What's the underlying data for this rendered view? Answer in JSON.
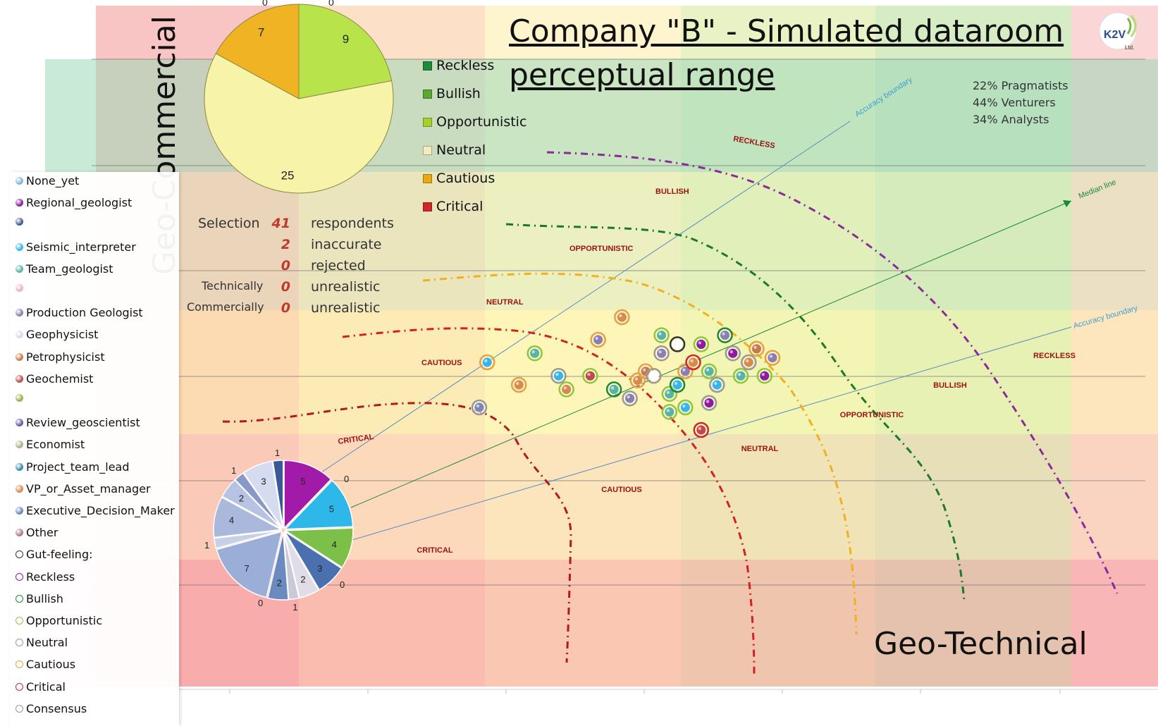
{
  "title_line1": "Company \"B\" - Simulated dataroom",
  "title_line2": "perceptual range",
  "y_axis_label": "Geo-Commercial",
  "x_axis_label": "Geo-Technical",
  "logo_text": "K2V",
  "logo_sub": "Ltd.",
  "stats": [
    "22%  Pragmatists",
    "44%  Venturers",
    "34%  Analysts"
  ],
  "selection": {
    "rows": [
      {
        "label": "Selection",
        "value": "41",
        "text": "respondents"
      },
      {
        "label": "",
        "value": "2",
        "text": "inaccurate"
      },
      {
        "label": "",
        "value": "0",
        "text": "rejected"
      },
      {
        "label": "Technically",
        "value": "0",
        "text": "unrealistic"
      },
      {
        "label": "Commercially",
        "value": "0",
        "text": "unrealistic"
      }
    ]
  },
  "pie_legend": [
    {
      "label": "Reckless",
      "color": "#1f8a3a"
    },
    {
      "label": "Bullish",
      "color": "#5aa832"
    },
    {
      "label": "Opportunistic",
      "color": "#a6d12c"
    },
    {
      "label": "Neutral",
      "color": "#f2ecc0"
    },
    {
      "label": "Cautious",
      "color": "#e8a917"
    },
    {
      "label": "Critical",
      "color": "#d32626"
    }
  ],
  "legend": [
    {
      "label": "None_yet",
      "color": "#7fb7d8",
      "hollow": false
    },
    {
      "label": "Regional_geologist",
      "color": "#8e1d9e",
      "hollow": false
    },
    {
      "label": "",
      "color": "#3b5998",
      "hollow": false
    },
    {
      "label": "Seismic_interpreter",
      "color": "#39b4e6",
      "hollow": false
    },
    {
      "label": "Team_geologist",
      "color": "#58b3a0",
      "hollow": false
    },
    {
      "label": "",
      "color": "#e8b4c0",
      "hollow": false
    },
    {
      "label": "Production Geologist",
      "color": "#8c7fb0",
      "hollow": false
    },
    {
      "label": "Geophysicist",
      "color": "#d9d9ee",
      "hollow": false
    },
    {
      "label": "Petrophysicist",
      "color": "#c97a4a",
      "hollow": false
    },
    {
      "label": "Geochemist",
      "color": "#c04a4a",
      "hollow": false
    },
    {
      "label": "",
      "color": "#9ab04a",
      "hollow": false
    },
    {
      "label": "Review_geoscientist",
      "color": "#6a5a9a",
      "hollow": false
    },
    {
      "label": "Economist",
      "color": "#b0b08a",
      "hollow": false
    },
    {
      "label": "Project_team_lead",
      "color": "#3a8ab0",
      "hollow": false
    },
    {
      "label": "VP_or_Asset_manager",
      "color": "#d88a4a",
      "hollow": false
    },
    {
      "label": "Executive_Decision_Maker",
      "color": "#6a8ab8",
      "hollow": false
    },
    {
      "label": "Other",
      "color": "#b07a8a",
      "hollow": false
    },
    {
      "label": "Gut-feeling:",
      "color": "#333333",
      "hollow": true
    },
    {
      "label": "Reckless",
      "color": "#8e1d9e",
      "hollow": true
    },
    {
      "label": "Bullish",
      "color": "#1a8a3a",
      "hollow": true
    },
    {
      "label": "Opportunistic",
      "color": "#8ec63f",
      "hollow": true
    },
    {
      "label": "Neutral",
      "color": "#999999",
      "hollow": true
    },
    {
      "label": "Cautious",
      "color": "#e8a040",
      "hollow": true
    },
    {
      "label": "Critical",
      "color": "#d32626",
      "hollow": true
    },
    {
      "label": "Consensus",
      "color": "#999999",
      "hollow": true
    }
  ],
  "zone_labels": {
    "upper": [
      "RECKLESS",
      "BULLISH",
      "OPPORTUNISTIC",
      "NEUTRAL",
      "CAUTIOUS",
      "CRITICAL"
    ],
    "lower": [
      "RECKLESS",
      "BULLISH",
      "OPPORTUNISTIC",
      "NEUTRAL",
      "CAUTIOUS",
      "CRITICAL"
    ]
  },
  "line_labels": {
    "accuracy_upper": "Accuracy boundary",
    "median": "Median line",
    "accuracy_lower": "Accuracy boundary"
  },
  "chart_data": [
    {
      "type": "pie",
      "name": "gut-feeling distribution",
      "labels": [
        "Reckless",
        "Bullish",
        "Opportunistic",
        "Neutral",
        "Cautious",
        "Critical"
      ],
      "values": [
        0,
        0,
        9,
        25,
        7,
        0
      ],
      "colors": [
        "#1f8a3a",
        "#5aa832",
        "#b9e34a",
        "#f7f3a8",
        "#f0b323",
        "#d32626"
      ]
    },
    {
      "type": "pie",
      "name": "respondent roles",
      "labels": [
        "Regional_geologist",
        "Seismic_interpreter",
        "Team_geologist",
        "Production Geologist",
        "Geophysicist",
        "Petrophysicist",
        "Geochemist",
        "Review_geoscientist",
        "Economist",
        "Project_team_lead",
        "VP_or_Asset_manager",
        "Executive_Decision_Maker",
        "Other",
        "None_yet"
      ],
      "values": [
        5,
        5,
        4,
        3,
        2,
        1,
        2,
        7,
        1,
        4,
        2,
        1,
        3,
        1
      ],
      "extra_zero_labels": [
        "0",
        "0",
        "0",
        "0"
      ],
      "colors": [
        "#a21aa8",
        "#2eb8ea",
        "#7cc04a",
        "#4a70b0",
        "#e0dce8",
        "#c9c9d8",
        "#6a8ac0",
        "#9aaed8",
        "#c8d0e8",
        "#aab8dc",
        "#b8c2e2",
        "#8899c8",
        "#d6dcef",
        "#3b5998"
      ]
    },
    {
      "type": "scatter",
      "name": "respondents",
      "xlim": [
        0,
        100
      ],
      "ylim": [
        0,
        100
      ],
      "points": [
        {
          "x": 30,
          "y": 45,
          "c": "#7a86b8",
          "ring": "#999999"
        },
        {
          "x": 31,
          "y": 55,
          "c": "#39b4e6",
          "ring": "#e8a040"
        },
        {
          "x": 35,
          "y": 50,
          "c": "#d88a4a",
          "ring": "#e8a040"
        },
        {
          "x": 37,
          "y": 57,
          "c": "#58b3a0",
          "ring": "#8ec63f"
        },
        {
          "x": 40,
          "y": 52,
          "c": "#39b4e6",
          "ring": "#999999"
        },
        {
          "x": 41,
          "y": 49,
          "c": "#d88a4a",
          "ring": "#8ec63f"
        },
        {
          "x": 44,
          "y": 52,
          "c": "#c04a4a",
          "ring": "#8ec63f"
        },
        {
          "x": 45,
          "y": 60,
          "c": "#8c7fb0",
          "ring": "#e8a040"
        },
        {
          "x": 47,
          "y": 49,
          "c": "#58b3a0",
          "ring": "#1a8a3a"
        },
        {
          "x": 48,
          "y": 65,
          "c": "#d88a4a",
          "ring": "#e8a040"
        },
        {
          "x": 49,
          "y": 47,
          "c": "#8c7fb0",
          "ring": "#999999"
        },
        {
          "x": 50,
          "y": 51,
          "c": "#d88a4a",
          "ring": "#e8a040"
        },
        {
          "x": 51,
          "y": 53,
          "c": "#c97a4a",
          "ring": "#e8a040"
        },
        {
          "x": 52,
          "y": 52,
          "c": "#ffffff",
          "ring": "#999999"
        },
        {
          "x": 53,
          "y": 57,
          "c": "#8c7fb0",
          "ring": "#999999"
        },
        {
          "x": 53,
          "y": 61,
          "c": "#58b3a0",
          "ring": "#8ec63f"
        },
        {
          "x": 54,
          "y": 48,
          "c": "#58b3a0",
          "ring": "#8ec63f"
        },
        {
          "x": 55,
          "y": 50,
          "c": "#39b4e6",
          "ring": "#1a8a3a"
        },
        {
          "x": 55,
          "y": 59,
          "c": "#ffffff",
          "ring": "#333333"
        },
        {
          "x": 56,
          "y": 53,
          "c": "#8c7fb0",
          "ring": "#e8a040"
        },
        {
          "x": 57,
          "y": 55,
          "c": "#d88a4a",
          "ring": "#d32626"
        },
        {
          "x": 58,
          "y": 59,
          "c": "#8e1d9e",
          "ring": "#8ec63f"
        },
        {
          "x": 59,
          "y": 53,
          "c": "#58b3a0",
          "ring": "#8ec63f"
        },
        {
          "x": 60,
          "y": 50,
          "c": "#39b4e6",
          "ring": "#999999"
        },
        {
          "x": 61,
          "y": 61,
          "c": "#8c7fb0",
          "ring": "#1a8a3a"
        },
        {
          "x": 62,
          "y": 57,
          "c": "#8e1d9e",
          "ring": "#999999"
        },
        {
          "x": 63,
          "y": 52,
          "c": "#58b3a0",
          "ring": "#8ec63f"
        },
        {
          "x": 64,
          "y": 55,
          "c": "#d88a4a",
          "ring": "#999999"
        },
        {
          "x": 65,
          "y": 58,
          "c": "#c97a4a",
          "ring": "#e8a040"
        },
        {
          "x": 66,
          "y": 52,
          "c": "#8e1d9e",
          "ring": "#8ec63f"
        },
        {
          "x": 67,
          "y": 56,
          "c": "#8c7fb0",
          "ring": "#e8a040"
        },
        {
          "x": 58,
          "y": 40,
          "c": "#c04a4a",
          "ring": "#d32626"
        },
        {
          "x": 56,
          "y": 45,
          "c": "#39b4e6",
          "ring": "#8ec63f"
        },
        {
          "x": 59,
          "y": 46,
          "c": "#8e1d9e",
          "ring": "#999999"
        },
        {
          "x": 54,
          "y": 44,
          "c": "#58b3a0",
          "ring": "#8ec63f"
        }
      ]
    }
  ]
}
